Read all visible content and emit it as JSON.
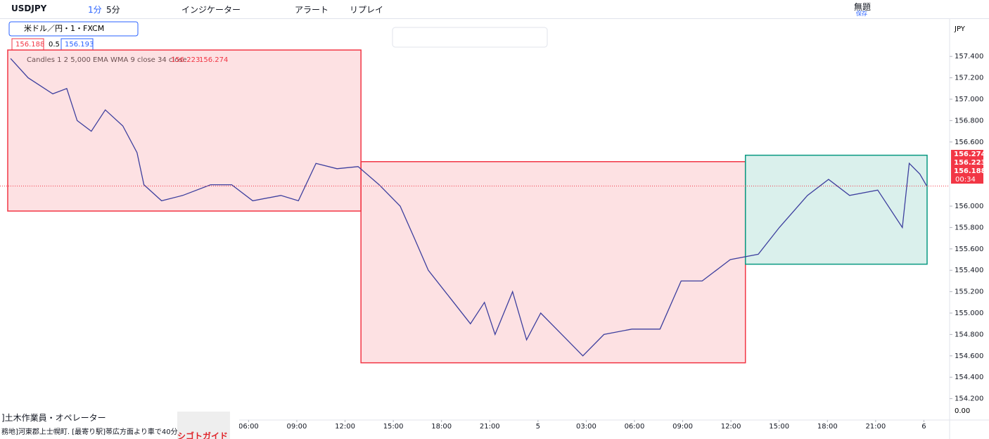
{
  "toolbar": {
    "symbol": "USDJPY",
    "interval1": "1分",
    "interval2": "5分",
    "indicators": "インジケーター",
    "alert": "アラート",
    "replay": "リプレイ",
    "layout_title": "無題",
    "save": "保存"
  },
  "legend": {
    "symbol_line": "米ドル／円・1・FXCM",
    "bid": "156.188",
    "spread": "0.5",
    "ask": "156.193",
    "indicator": "Candles 1 2 5,000 EMA WMA 9 close 34 close",
    "indicator_v1": "156.223",
    "indicator_v2": "156.274"
  },
  "currency": "JPY",
  "volume_axis_label": "0.00",
  "countdown": "00:34",
  "chart_data": {
    "type": "line",
    "x": [
      -8.8,
      -7.71,
      -6.18,
      -5.31,
      -4.66,
      -3.78,
      -2.91,
      -1.82,
      -0.94,
      -0.51,
      0.59,
      1.9,
      3.64,
      4.95,
      6.26,
      8.01,
      9.1,
      10.19,
      11.5,
      12.81,
      14.12,
      15.43,
      16.31,
      17.18,
      18.49,
      19.8,
      20.67,
      21.33,
      22.42,
      23.29,
      24.17,
      25.48,
      26.79,
      28.1,
      29.84,
      31.59,
      32.9,
      34.21,
      35.96,
      37.7,
      39.01,
      40.76,
      42.07,
      43.38,
      45.13,
      46.66,
      47.09,
      47.75,
      48.18
    ],
    "series": [
      {
        "color": "#3d3f9e",
        "values": [
          157.38,
          157.2,
          157.05,
          157.1,
          156.8,
          156.7,
          156.9,
          156.75,
          156.5,
          156.2,
          156.05,
          156.1,
          156.2,
          156.2,
          156.05,
          156.1,
          156.05,
          156.4,
          156.35,
          156.37,
          156.2,
          156.0,
          155.7,
          155.4,
          155.15,
          154.9,
          155.1,
          154.8,
          155.2,
          154.75,
          155.0,
          154.8,
          154.6,
          154.8,
          154.85,
          154.85,
          155.3,
          155.3,
          155.5,
          155.55,
          155.8,
          156.1,
          156.25,
          156.1,
          156.15,
          155.8,
          156.4,
          156.3,
          156.188
        ]
      }
    ],
    "boxes": [
      {
        "x": [
          -8.98,
          12.99
        ],
        "y": [
          155.954,
          157.46
        ],
        "color": "#f23645"
      },
      {
        "x": [
          12.99,
          36.9
        ],
        "y": [
          154.535,
          156.416
        ],
        "color": "#f23645"
      },
      {
        "x": [
          36.9,
          48.2
        ],
        "y": [
          155.457,
          156.476
        ],
        "color": "#089981"
      }
    ],
    "price_labels": [
      {
        "value": 156.274,
        "color": "#f23645"
      },
      {
        "value": 156.223,
        "color": "#f23645"
      },
      {
        "value": 156.188,
        "color": "#f23645"
      }
    ],
    "xlim": [
      -9.46,
      49.6
    ],
    "ylim": [
      154.0,
      157.75
    ],
    "xticks": [
      {
        "value": 6,
        "label": "06:00"
      },
      {
        "value": 9,
        "label": "09:00"
      },
      {
        "value": 12,
        "label": "12:00"
      },
      {
        "value": 15,
        "label": "15:00"
      },
      {
        "value": 18,
        "label": "18:00"
      },
      {
        "value": 21,
        "label": "21:00"
      },
      {
        "value": 24,
        "label": "5"
      },
      {
        "value": 27,
        "label": "03:00"
      },
      {
        "value": 30,
        "label": "06:00"
      },
      {
        "value": 33,
        "label": "09:00"
      },
      {
        "value": 36,
        "label": "12:00"
      },
      {
        "value": 39,
        "label": "15:00"
      },
      {
        "value": 42,
        "label": "18:00"
      },
      {
        "value": 45,
        "label": "21:00"
      },
      {
        "value": 48,
        "label": "6"
      }
    ],
    "yticks": [
      {
        "value": 157.4,
        "label": "157.400"
      },
      {
        "value": 157.2,
        "label": "157.200"
      },
      {
        "value": 157.0,
        "label": "157.000"
      },
      {
        "value": 156.8,
        "label": "156.800"
      },
      {
        "value": 156.6,
        "label": "156.600"
      },
      {
        "value": 156.0,
        "label": "156.000"
      },
      {
        "value": 155.8,
        "label": "155.800"
      },
      {
        "value": 155.6,
        "label": "155.600"
      },
      {
        "value": 155.4,
        "label": "155.400"
      },
      {
        "value": 155.2,
        "label": "155.200"
      },
      {
        "value": 155.0,
        "label": "155.000"
      },
      {
        "value": 154.8,
        "label": "154.800"
      },
      {
        "value": 154.6,
        "label": "154.600"
      },
      {
        "value": 154.4,
        "label": "154.400"
      },
      {
        "value": 154.2,
        "label": "154.200"
      }
    ]
  },
  "ad": {
    "title": "]土木作業員・オペレーター",
    "body": "務地]河東郡上士幌町. [最寄り駅]帯広方面より車で40分",
    "brand": "シゴトガイド"
  }
}
